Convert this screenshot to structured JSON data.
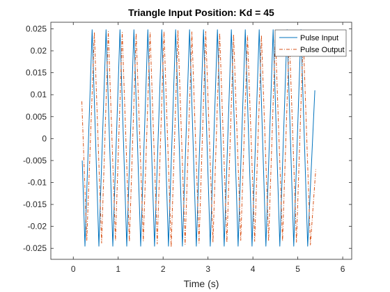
{
  "chart_data": {
    "type": "line",
    "title": "Triangle Input Position: Kd = 45",
    "xlabel": "Time (s)",
    "ylabel": "",
    "xlim": [
      -0.5,
      6.2
    ],
    "ylim": [
      -0.0275,
      0.0265
    ],
    "xticks": [
      0,
      1,
      2,
      3,
      4,
      5,
      6
    ],
    "xtick_labels": [
      "0",
      "1",
      "2",
      "3",
      "4",
      "5",
      "6"
    ],
    "yticks": [
      -0.025,
      -0.02,
      -0.015,
      -0.01,
      -0.005,
      0,
      0.005,
      0.01,
      0.015,
      0.02,
      0.025
    ],
    "ytick_labels": [
      "-0.025",
      "-0.02",
      "-0.015",
      "-0.01",
      "-0.005",
      "0",
      "0.005",
      "0.01",
      "0.015",
      "0.02",
      "0.025"
    ],
    "grid": false,
    "legend_position": "top-right",
    "series": [
      {
        "name": "Pulse Input",
        "color": "#0072BD",
        "style": "solid",
        "x": [
          0.2,
          0.26,
          0.42,
          0.57,
          0.73,
          0.88,
          1.04,
          1.19,
          1.35,
          1.5,
          1.66,
          1.81,
          1.97,
          2.12,
          2.28,
          2.43,
          2.59,
          2.74,
          2.9,
          3.05,
          3.21,
          3.36,
          3.52,
          3.67,
          3.83,
          3.98,
          4.14,
          4.29,
          4.45,
          4.6,
          4.76,
          4.91,
          5.07,
          5.22,
          5.38
        ],
        "y": [
          -0.005,
          -0.0245,
          0.0248,
          -0.0245,
          0.0248,
          -0.0245,
          0.0248,
          -0.0245,
          0.0248,
          -0.0245,
          0.0248,
          -0.0245,
          0.0248,
          -0.0245,
          0.0248,
          -0.0245,
          0.0248,
          -0.0245,
          0.0248,
          -0.0245,
          0.0248,
          -0.0245,
          0.0248,
          -0.0245,
          0.0248,
          -0.0245,
          0.0248,
          -0.0245,
          0.0248,
          -0.0245,
          0.0248,
          -0.0245,
          0.0248,
          -0.0245,
          0.011
        ]
      },
      {
        "name": "Pulse Output",
        "color": "#D95319",
        "style": "dash-dot",
        "x": [
          0.19,
          0.3,
          0.47,
          0.63,
          0.78,
          0.94,
          1.09,
          1.25,
          1.4,
          1.56,
          1.71,
          1.87,
          2.02,
          2.18,
          2.33,
          2.49,
          2.64,
          2.8,
          2.95,
          3.11,
          3.26,
          3.42,
          3.57,
          3.73,
          3.88,
          4.04,
          4.19,
          4.35,
          4.5,
          4.66,
          4.81,
          4.97,
          5.12,
          5.28,
          5.4
        ],
        "y": [
          0.0085,
          -0.0232,
          0.0242,
          -0.0238,
          0.0244,
          -0.0232,
          0.0242,
          -0.0235,
          0.024,
          -0.0233,
          0.0242,
          -0.024,
          0.0244,
          -0.0247,
          0.0246,
          -0.0241,
          0.0243,
          -0.0238,
          0.0244,
          -0.0236,
          0.024,
          -0.0236,
          0.0237,
          -0.0232,
          0.0235,
          -0.0234,
          0.0235,
          -0.0233,
          0.0235,
          -0.0233,
          0.0236,
          -0.0236,
          0.0236,
          -0.0242,
          -0.007
        ]
      }
    ]
  }
}
